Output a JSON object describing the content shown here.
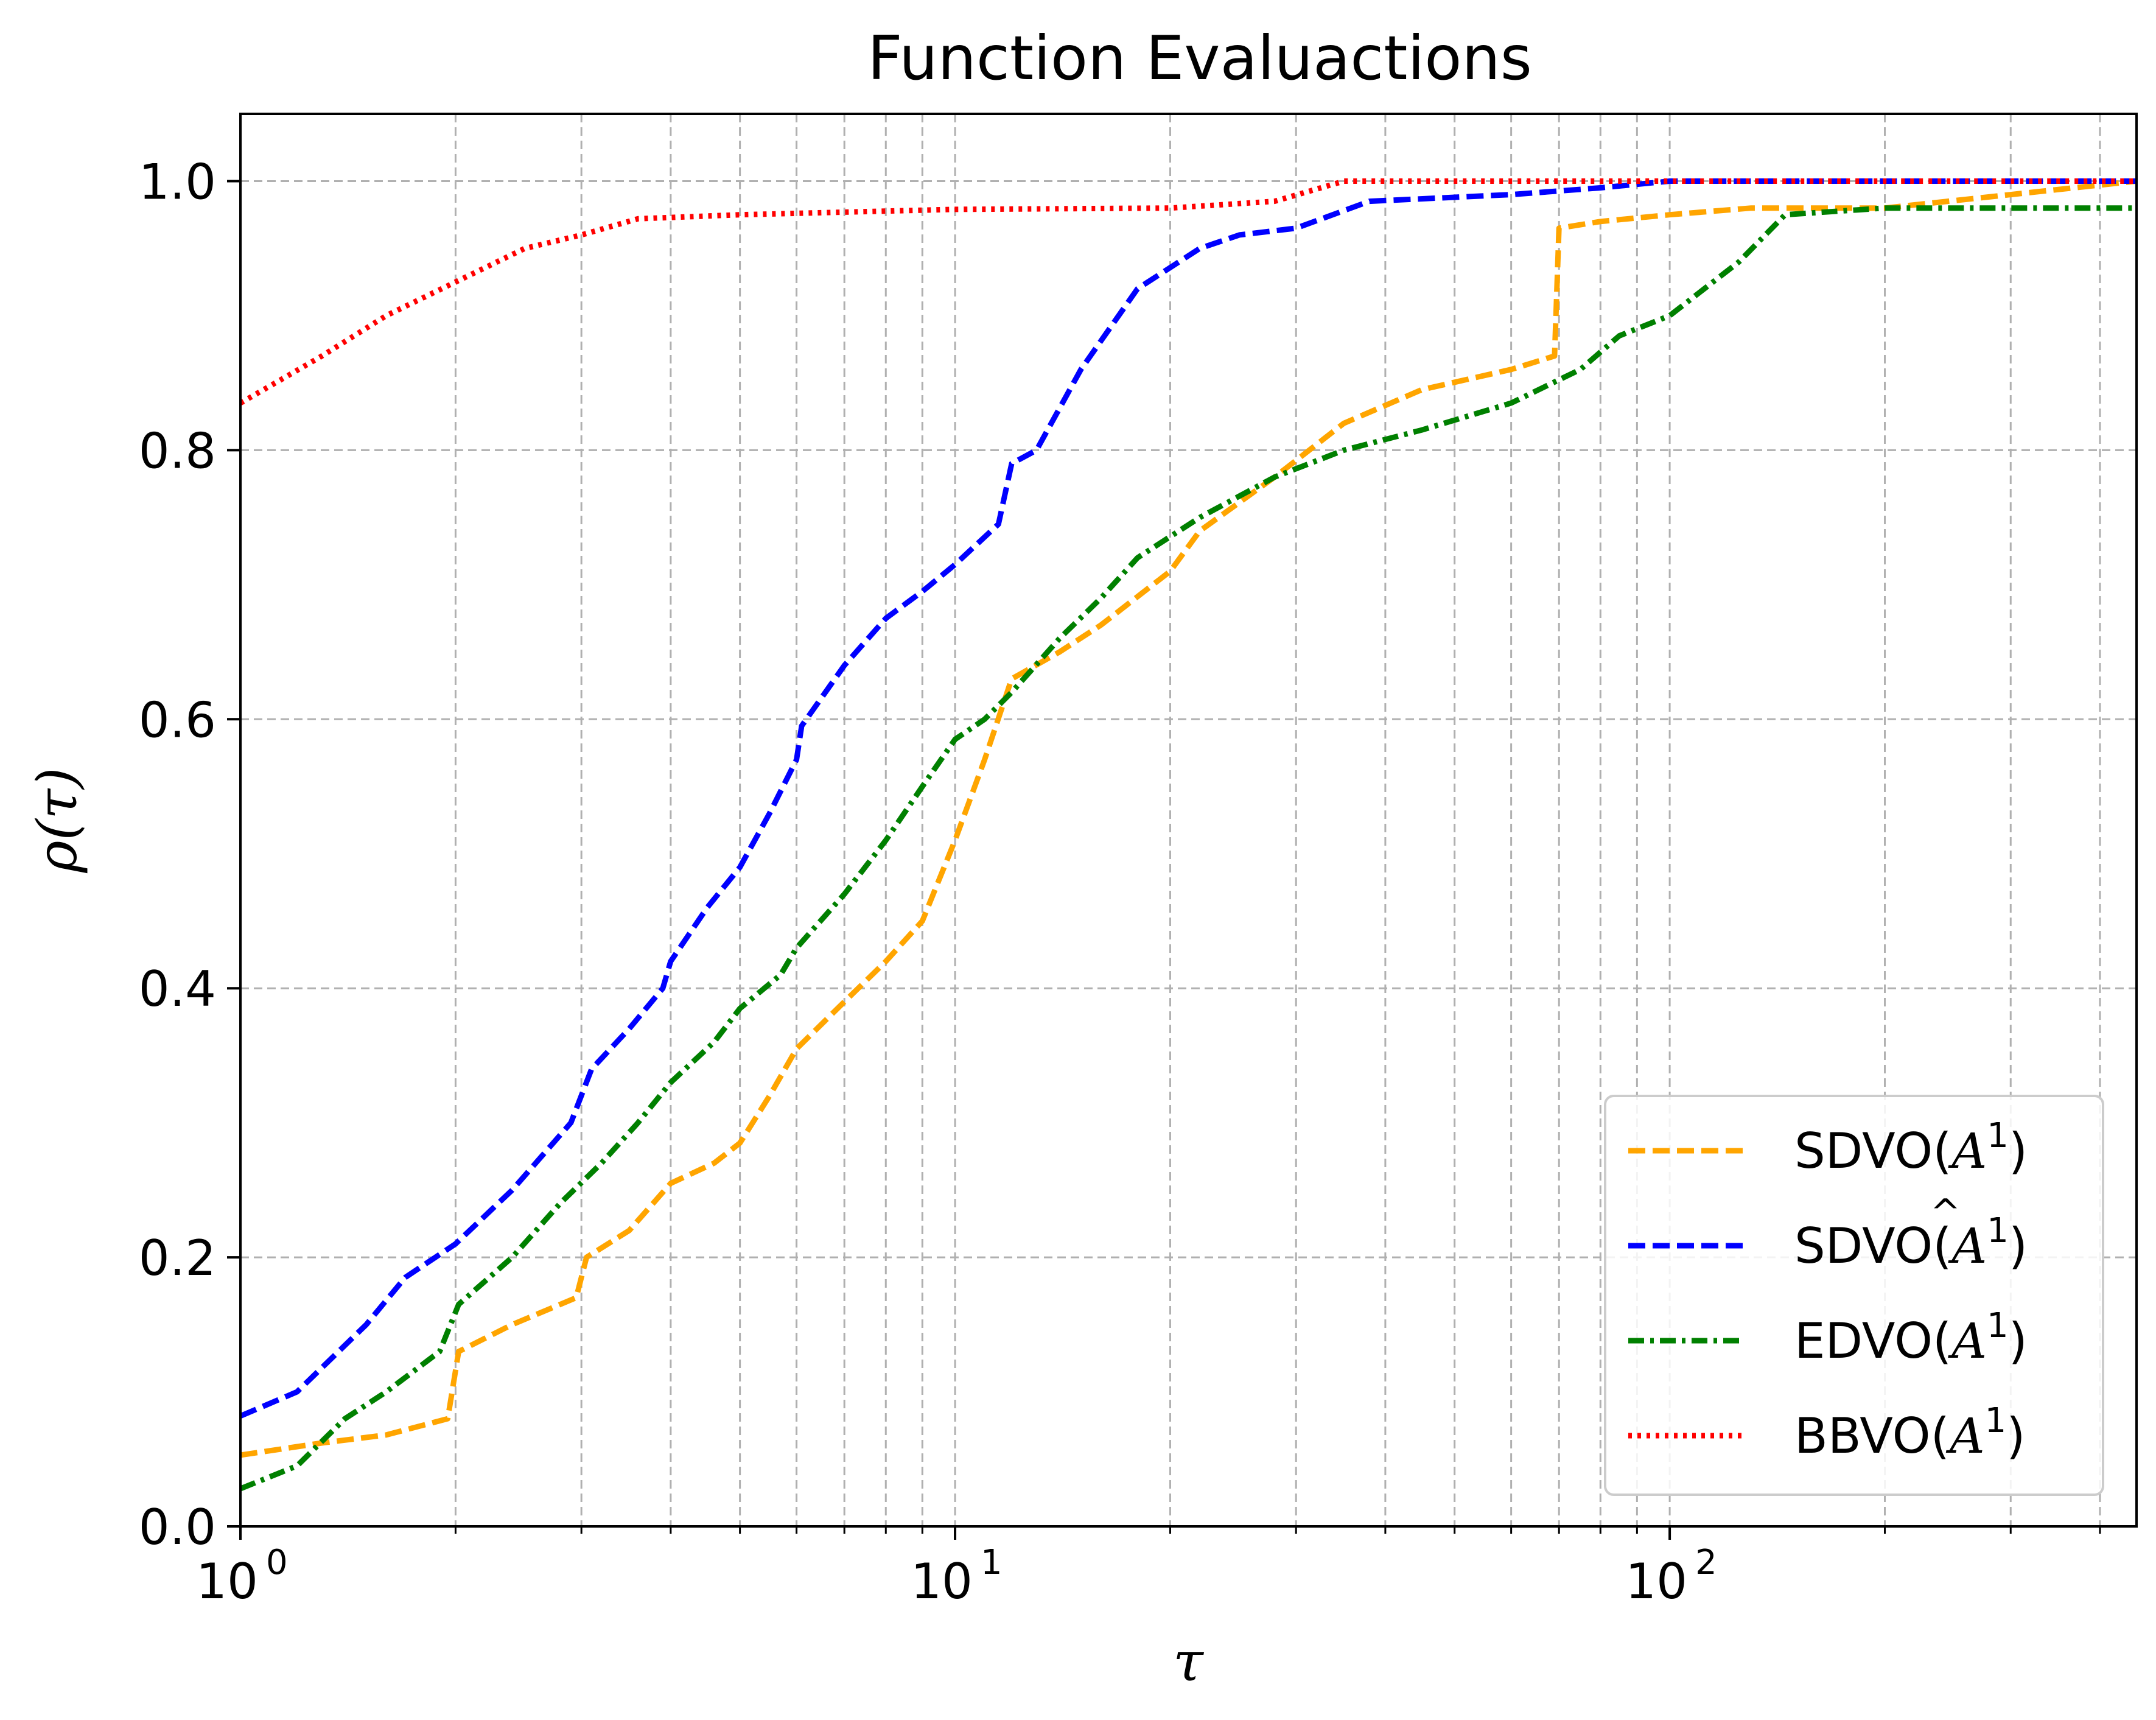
{
  "chart_data": {
    "type": "line",
    "title": "Function Evaluactions",
    "xlabel": "τ",
    "ylabel": "ρ(τ)",
    "xscale": "log",
    "xlim": [
      1,
      450
    ],
    "ylim": [
      0.0,
      1.05
    ],
    "grid": true,
    "legend_position": "lower-right",
    "x_ticks": [
      {
        "value": 1,
        "base": "10",
        "exp": "0"
      },
      {
        "value": 10,
        "base": "10",
        "exp": "1"
      },
      {
        "value": 100,
        "base": "10",
        "exp": "2"
      }
    ],
    "y_ticks": [
      {
        "value": 0.0,
        "label": "0.0"
      },
      {
        "value": 0.2,
        "label": "0.2"
      },
      {
        "value": 0.4,
        "label": "0.4"
      },
      {
        "value": 0.6,
        "label": "0.6"
      },
      {
        "value": 0.8,
        "label": "0.8"
      },
      {
        "value": 1.0,
        "label": "1.0"
      }
    ],
    "series": [
      {
        "name": "SDVO(A^1)",
        "legend_prefix": "SDVO(",
        "legend_var": "A",
        "legend_hat": "",
        "legend_sup": "1",
        "legend_suffix": ")",
        "color": "#ffa500",
        "dash": "28,12",
        "points": [
          [
            1,
            0.053
          ],
          [
            1.3,
            0.062
          ],
          [
            1.6,
            0.068
          ],
          [
            1.95,
            0.08
          ],
          [
            2.02,
            0.13
          ],
          [
            2.4,
            0.15
          ],
          [
            2.95,
            0.17
          ],
          [
            3.05,
            0.2
          ],
          [
            3.5,
            0.22
          ],
          [
            4.0,
            0.255
          ],
          [
            4.6,
            0.27
          ],
          [
            5.0,
            0.285
          ],
          [
            5.5,
            0.32
          ],
          [
            6.0,
            0.355
          ],
          [
            7.0,
            0.39
          ],
          [
            8.0,
            0.42
          ],
          [
            9.0,
            0.45
          ],
          [
            10,
            0.51
          ],
          [
            11,
            0.57
          ],
          [
            12,
            0.63
          ],
          [
            14,
            0.65
          ],
          [
            16,
            0.67
          ],
          [
            20,
            0.71
          ],
          [
            22,
            0.74
          ],
          [
            28,
            0.78
          ],
          [
            35,
            0.82
          ],
          [
            45,
            0.845
          ],
          [
            60,
            0.86
          ],
          [
            69,
            0.87
          ],
          [
            70,
            0.965
          ],
          [
            80,
            0.97
          ],
          [
            100,
            0.975
          ],
          [
            130,
            0.98
          ],
          [
            200,
            0.98
          ],
          [
            300,
            0.99
          ],
          [
            450,
            1.0
          ]
        ]
      },
      {
        "name": "SDVO(Â^1)",
        "legend_prefix": "SDVO(",
        "legend_var": "A",
        "legend_hat": "^",
        "legend_sup": "1",
        "legend_suffix": ")",
        "color": "#0000ff",
        "dash": "28,12",
        "points": [
          [
            1,
            0.082
          ],
          [
            1.2,
            0.1
          ],
          [
            1.5,
            0.15
          ],
          [
            1.7,
            0.185
          ],
          [
            2.0,
            0.21
          ],
          [
            2.4,
            0.25
          ],
          [
            2.9,
            0.3
          ],
          [
            3.1,
            0.34
          ],
          [
            3.5,
            0.37
          ],
          [
            3.9,
            0.4
          ],
          [
            4.0,
            0.42
          ],
          [
            4.5,
            0.46
          ],
          [
            5.0,
            0.49
          ],
          [
            5.5,
            0.53
          ],
          [
            6.0,
            0.57
          ],
          [
            6.1,
            0.595
          ],
          [
            7.0,
            0.64
          ],
          [
            8.0,
            0.675
          ],
          [
            9.0,
            0.695
          ],
          [
            10,
            0.715
          ],
          [
            11.5,
            0.745
          ],
          [
            12,
            0.79
          ],
          [
            13,
            0.8
          ],
          [
            15,
            0.86
          ],
          [
            18,
            0.92
          ],
          [
            22,
            0.95
          ],
          [
            25,
            0.96
          ],
          [
            30,
            0.965
          ],
          [
            38,
            0.985
          ],
          [
            60,
            0.99
          ],
          [
            80,
            0.995
          ],
          [
            100,
            1.0
          ],
          [
            450,
            1.0
          ]
        ]
      },
      {
        "name": "EDVO(A^1)",
        "legend_prefix": "EDVO(",
        "legend_var": "A",
        "legend_hat": "",
        "legend_sup": "1",
        "legend_suffix": ")",
        "color": "#008000",
        "dash": "26,10,6,10",
        "points": [
          [
            1,
            0.028
          ],
          [
            1.2,
            0.045
          ],
          [
            1.4,
            0.08
          ],
          [
            1.6,
            0.1
          ],
          [
            1.9,
            0.13
          ],
          [
            2.02,
            0.165
          ],
          [
            2.4,
            0.2
          ],
          [
            2.8,
            0.24
          ],
          [
            3.2,
            0.27
          ],
          [
            3.6,
            0.3
          ],
          [
            4.0,
            0.33
          ],
          [
            4.6,
            0.36
          ],
          [
            5.0,
            0.385
          ],
          [
            5.7,
            0.41
          ],
          [
            6.0,
            0.43
          ],
          [
            7.0,
            0.47
          ],
          [
            8.0,
            0.51
          ],
          [
            9.0,
            0.55
          ],
          [
            10,
            0.585
          ],
          [
            11,
            0.6
          ],
          [
            12,
            0.62
          ],
          [
            14,
            0.66
          ],
          [
            16,
            0.69
          ],
          [
            18,
            0.72
          ],
          [
            22,
            0.75
          ],
          [
            28,
            0.78
          ],
          [
            35,
            0.8
          ],
          [
            45,
            0.815
          ],
          [
            60,
            0.835
          ],
          [
            75,
            0.86
          ],
          [
            85,
            0.885
          ],
          [
            100,
            0.9
          ],
          [
            125,
            0.94
          ],
          [
            145,
            0.975
          ],
          [
            200,
            0.98
          ],
          [
            450,
            0.98
          ]
        ]
      },
      {
        "name": "BBVO(A^1)",
        "legend_prefix": "BBVO(",
        "legend_var": "A",
        "legend_hat": "",
        "legend_sup": "1",
        "legend_suffix": ")",
        "color": "#ff0000",
        "dash": "6,9",
        "points": [
          [
            1,
            0.835
          ],
          [
            1.3,
            0.87
          ],
          [
            1.6,
            0.9
          ],
          [
            2.0,
            0.925
          ],
          [
            2.5,
            0.95
          ],
          [
            3.0,
            0.96
          ],
          [
            3.6,
            0.972
          ],
          [
            5.0,
            0.975
          ],
          [
            10,
            0.979
          ],
          [
            20,
            0.98
          ],
          [
            28,
            0.985
          ],
          [
            35,
            1.0
          ],
          [
            450,
            1.0
          ]
        ]
      }
    ]
  }
}
